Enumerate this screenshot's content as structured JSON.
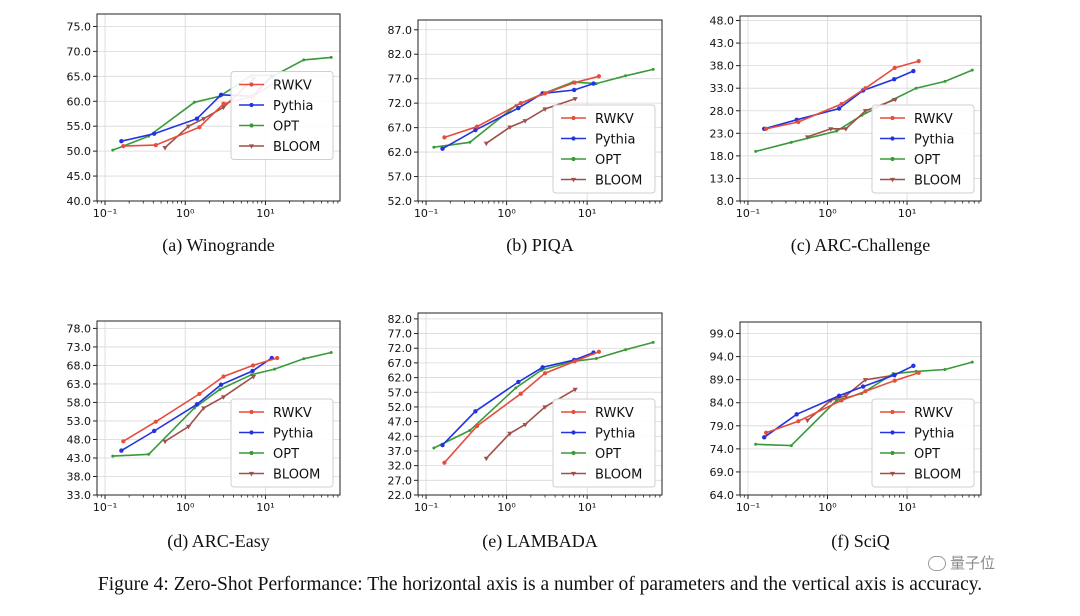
{
  "caption": "Figure 4: Zero-Shot Performance: The horizontal axis is a number of parameters and the vertical axis is accuracy.",
  "watermark": "量子位",
  "colors": {
    "RWKV": "#e74c3c",
    "Pythia": "#2233e0",
    "OPT": "#3a9a3a",
    "BLOOM": "#a0504a"
  },
  "chart_data": [
    {
      "type": "line",
      "caption": "(a) Winogrande",
      "x_scale": "log",
      "xticks": [
        "10⁻¹",
        "10⁰",
        "10¹"
      ],
      "yticks": [
        "40.0",
        "45.0",
        "50.0",
        "55.0",
        "60.0",
        "65.0",
        "70.0",
        "75.0"
      ],
      "ylim": [
        40,
        77.5
      ],
      "legend": "center-right",
      "grid": true,
      "series": [
        {
          "name": "RWKV",
          "x": [
            0.169,
            0.43,
            1.5,
            3,
            7,
            14
          ],
          "y": [
            51.0,
            51.2,
            54.8,
            59.5,
            61.0,
            64.0
          ]
        },
        {
          "name": "Pythia",
          "x": [
            0.16,
            0.41,
            1.4,
            2.8,
            6.9,
            12
          ],
          "y": [
            52.0,
            53.5,
            56.5,
            61.3,
            61.0,
            65.0
          ]
        },
        {
          "name": "OPT",
          "x": [
            0.125,
            0.35,
            1.3,
            2.7,
            6.7,
            13,
            30,
            66
          ],
          "y": [
            50.2,
            53.0,
            59.8,
            61.0,
            65.2,
            65.2,
            68.3,
            68.8
          ]
        },
        {
          "name": "BLOOM",
          "x": [
            0.56,
            1.1,
            1.7,
            3,
            7.1
          ],
          "y": [
            50.7,
            55.0,
            56.5,
            58.8,
            64.5
          ]
        }
      ]
    },
    {
      "type": "line",
      "caption": "(b) PIQA",
      "x_scale": "log",
      "xticks": [
        "10⁻¹",
        "10⁰",
        "10¹"
      ],
      "yticks": [
        "52.0",
        "57.0",
        "62.0",
        "67.0",
        "72.0",
        "77.0",
        "82.0",
        "87.0"
      ],
      "ylim": [
        52,
        89
      ],
      "legend": "lower-right",
      "grid": true,
      "series": [
        {
          "name": "RWKV",
          "x": [
            0.169,
            0.43,
            1.5,
            3,
            7,
            14
          ],
          "y": [
            65.0,
            67.2,
            72.0,
            74.0,
            76.2,
            77.5
          ]
        },
        {
          "name": "Pythia",
          "x": [
            0.16,
            0.41,
            1.4,
            2.8,
            6.9,
            12
          ],
          "y": [
            62.7,
            66.5,
            71.0,
            74.0,
            74.7,
            76.0
          ]
        },
        {
          "name": "OPT",
          "x": [
            0.125,
            0.35,
            1.3,
            2.7,
            6.7,
            13,
            30,
            66
          ],
          "y": [
            63.0,
            64.0,
            71.5,
            73.8,
            76.3,
            76.0,
            77.6,
            78.9
          ]
        },
        {
          "name": "BLOOM",
          "x": [
            0.56,
            1.1,
            1.7,
            3,
            7.1
          ],
          "y": [
            63.8,
            67.1,
            68.4,
            70.8,
            72.9
          ]
        }
      ]
    },
    {
      "type": "line",
      "caption": "(c) ARC-Challenge",
      "x_scale": "log",
      "xticks": [
        "10⁻¹",
        "10⁰",
        "10¹"
      ],
      "yticks": [
        "8.0",
        "13.0",
        "18.0",
        "23.0",
        "28.0",
        "33.0",
        "38.0",
        "43.0",
        "48.0"
      ],
      "ylim": [
        8,
        49
      ],
      "legend": "lower-right",
      "grid": true,
      "series": [
        {
          "name": "RWKV",
          "x": [
            0.169,
            0.43,
            1.5,
            3,
            7,
            14
          ],
          "y": [
            24.0,
            25.5,
            29.5,
            33.0,
            37.5,
            39.0
          ]
        },
        {
          "name": "Pythia",
          "x": [
            0.16,
            0.41,
            1.4,
            2.8,
            6.9,
            12
          ],
          "y": [
            24.0,
            26.0,
            28.5,
            32.5,
            35.0,
            36.8
          ]
        },
        {
          "name": "OPT",
          "x": [
            0.125,
            0.35,
            1.3,
            2.7,
            6.7,
            13,
            30,
            66
          ],
          "y": [
            19.0,
            21.0,
            23.5,
            27.0,
            30.5,
            33.0,
            34.5,
            37.0
          ]
        },
        {
          "name": "BLOOM",
          "x": [
            0.56,
            1.1,
            1.7,
            3,
            7.1
          ],
          "y": [
            22.2,
            24.0,
            24.0,
            28.0,
            30.5
          ]
        }
      ]
    },
    {
      "type": "line",
      "caption": "(d) ARC-Easy",
      "x_scale": "log",
      "xticks": [
        "10⁻¹",
        "10⁰",
        "10¹"
      ],
      "yticks": [
        "33.0",
        "38.0",
        "43.0",
        "48.0",
        "53.0",
        "58.0",
        "63.0",
        "68.0",
        "73.0",
        "78.0"
      ],
      "ylim": [
        33,
        80
      ],
      "legend": "lower-right",
      "grid": true,
      "series": [
        {
          "name": "RWKV",
          "x": [
            0.169,
            0.43,
            1.5,
            3,
            7,
            14
          ],
          "y": [
            47.5,
            52.8,
            60.3,
            65.0,
            68.0,
            70.0
          ]
        },
        {
          "name": "Pythia",
          "x": [
            0.16,
            0.41,
            1.4,
            2.8,
            6.9,
            12
          ],
          "y": [
            45.0,
            50.3,
            57.5,
            62.8,
            66.5,
            70.0
          ]
        },
        {
          "name": "OPT",
          "x": [
            0.125,
            0.35,
            1.3,
            2.7,
            6.7,
            13,
            30,
            66
          ],
          "y": [
            43.5,
            44.0,
            56.5,
            61.5,
            65.5,
            67.0,
            69.8,
            71.5
          ]
        },
        {
          "name": "BLOOM",
          "x": [
            0.56,
            1.1,
            1.7,
            3,
            7.1
          ],
          "y": [
            47.5,
            51.5,
            56.5,
            59.5,
            65.0
          ]
        }
      ]
    },
    {
      "type": "line",
      "caption": "(e) LAMBADA",
      "x_scale": "log",
      "xticks": [
        "10⁻¹",
        "10⁰",
        "10¹"
      ],
      "yticks": [
        "22.0",
        "27.0",
        "32.0",
        "37.0",
        "42.0",
        "47.0",
        "52.0",
        "57.0",
        "62.0",
        "67.0",
        "72.0",
        "77.0",
        "82.0"
      ],
      "ylim": [
        22,
        84
      ],
      "legend": "lower-right",
      "grid": true,
      "series": [
        {
          "name": "RWKV",
          "x": [
            0.169,
            0.43,
            1.5,
            3,
            7,
            14
          ],
          "y": [
            33.0,
            45.5,
            56.5,
            63.5,
            67.5,
            70.8
          ]
        },
        {
          "name": "Pythia",
          "x": [
            0.16,
            0.41,
            1.4,
            2.8,
            6.9,
            12
          ],
          "y": [
            39.0,
            50.5,
            60.5,
            65.5,
            68.0,
            70.5
          ]
        },
        {
          "name": "OPT",
          "x": [
            0.125,
            0.35,
            1.3,
            2.7,
            6.7,
            13,
            30,
            66
          ],
          "y": [
            38.0,
            44.0,
            58.5,
            64.5,
            67.5,
            68.5,
            71.5,
            74.0
          ]
        },
        {
          "name": "BLOOM",
          "x": [
            0.56,
            1.1,
            1.7,
            3,
            7.1
          ],
          "y": [
            34.5,
            43.0,
            46.0,
            52.0,
            58.0
          ]
        }
      ]
    },
    {
      "type": "line",
      "caption": "(f) SciQ",
      "x_scale": "log",
      "xticks": [
        "10⁻¹",
        "10⁰",
        "10¹"
      ],
      "yticks": [
        "64.0",
        "69.0",
        "74.0",
        "79.0",
        "84.0",
        "89.0",
        "94.0",
        "99.0"
      ],
      "ylim": [
        64,
        101.5
      ],
      "legend": "lower-right",
      "grid": true,
      "series": [
        {
          "name": "RWKV",
          "x": [
            0.169,
            0.43,
            1.5,
            3,
            7,
            14
          ],
          "y": [
            77.5,
            80.0,
            84.5,
            86.5,
            88.8,
            90.5
          ]
        },
        {
          "name": "Pythia",
          "x": [
            0.16,
            0.41,
            1.4,
            2.8,
            6.9,
            12
          ],
          "y": [
            76.5,
            81.5,
            85.5,
            87.5,
            90.0,
            92.0
          ]
        },
        {
          "name": "OPT",
          "x": [
            0.125,
            0.35,
            1.3,
            2.7,
            6.7,
            13,
            30,
            66
          ],
          "y": [
            75.0,
            74.7,
            84.5,
            86.0,
            90.3,
            90.8,
            91.2,
            92.8
          ]
        },
        {
          "name": "BLOOM",
          "x": [
            0.56,
            1.1,
            1.7,
            3,
            7.1
          ],
          "y": [
            80.2,
            84.5,
            85.5,
            89.0,
            90.0
          ]
        }
      ]
    }
  ]
}
